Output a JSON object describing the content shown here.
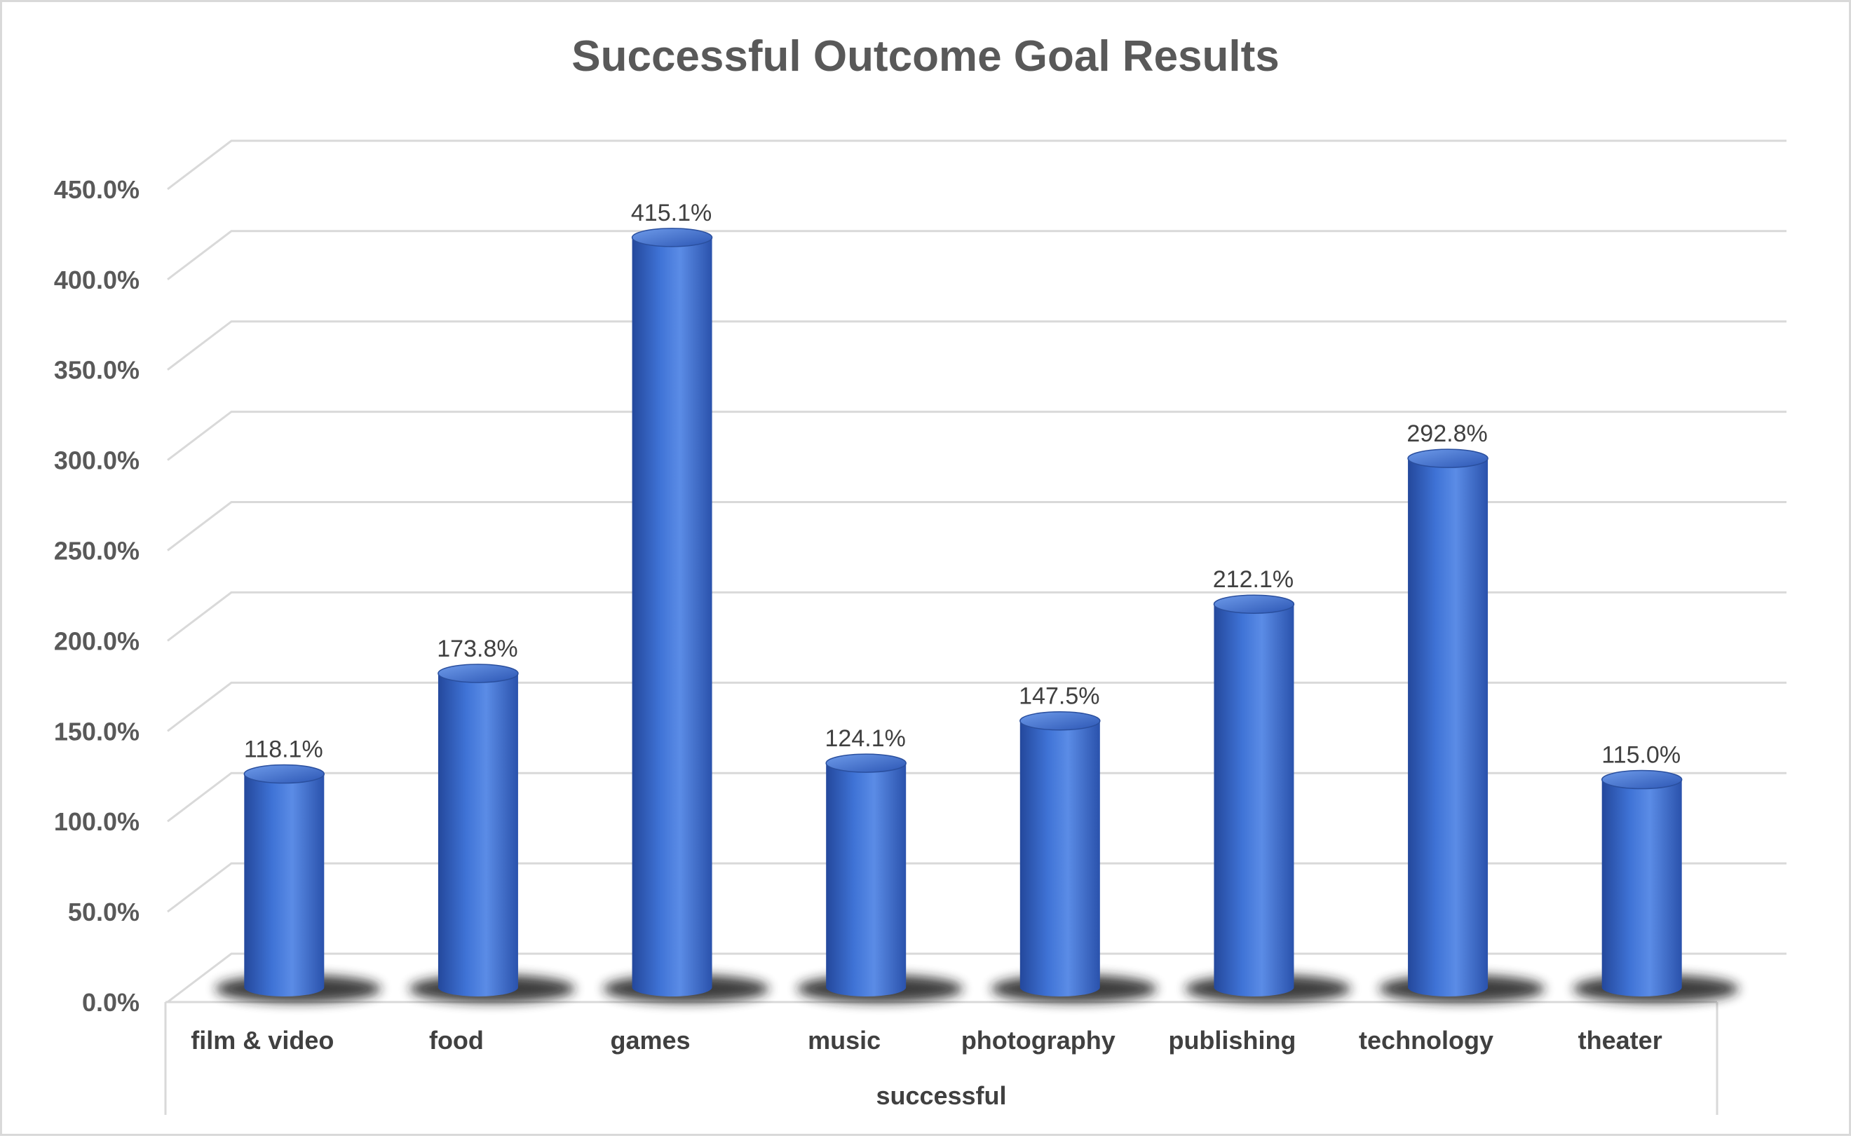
{
  "chart_data": {
    "type": "bar",
    "title": "Successful Outcome Goal Results",
    "categories": [
      "film & video",
      "food",
      "games",
      "music",
      "photography",
      "publishing",
      "technology",
      "theater"
    ],
    "group_label": "successful",
    "series": [
      {
        "values": [
          118.1,
          173.8,
          415.1,
          124.1,
          147.5,
          212.1,
          292.8,
          115.0
        ],
        "data_labels": [
          "118.1%",
          "173.8%",
          "415.1%",
          "124.1%",
          "147.5%",
          "212.1%",
          "292.8%",
          "115.0%"
        ],
        "color": "#3a6fd8"
      }
    ],
    "ylim": [
      0,
      450
    ],
    "yticks": [
      0,
      50,
      100,
      150,
      200,
      250,
      300,
      350,
      400,
      450
    ],
    "ytick_labels": [
      "0.0%",
      "50.0%",
      "100.0%",
      "150.0%",
      "200.0%",
      "250.0%",
      "300.0%",
      "350.0%",
      "400.0%",
      "450.0%"
    ],
    "grid": true,
    "legend": "none",
    "style": "3d-cylinder"
  }
}
